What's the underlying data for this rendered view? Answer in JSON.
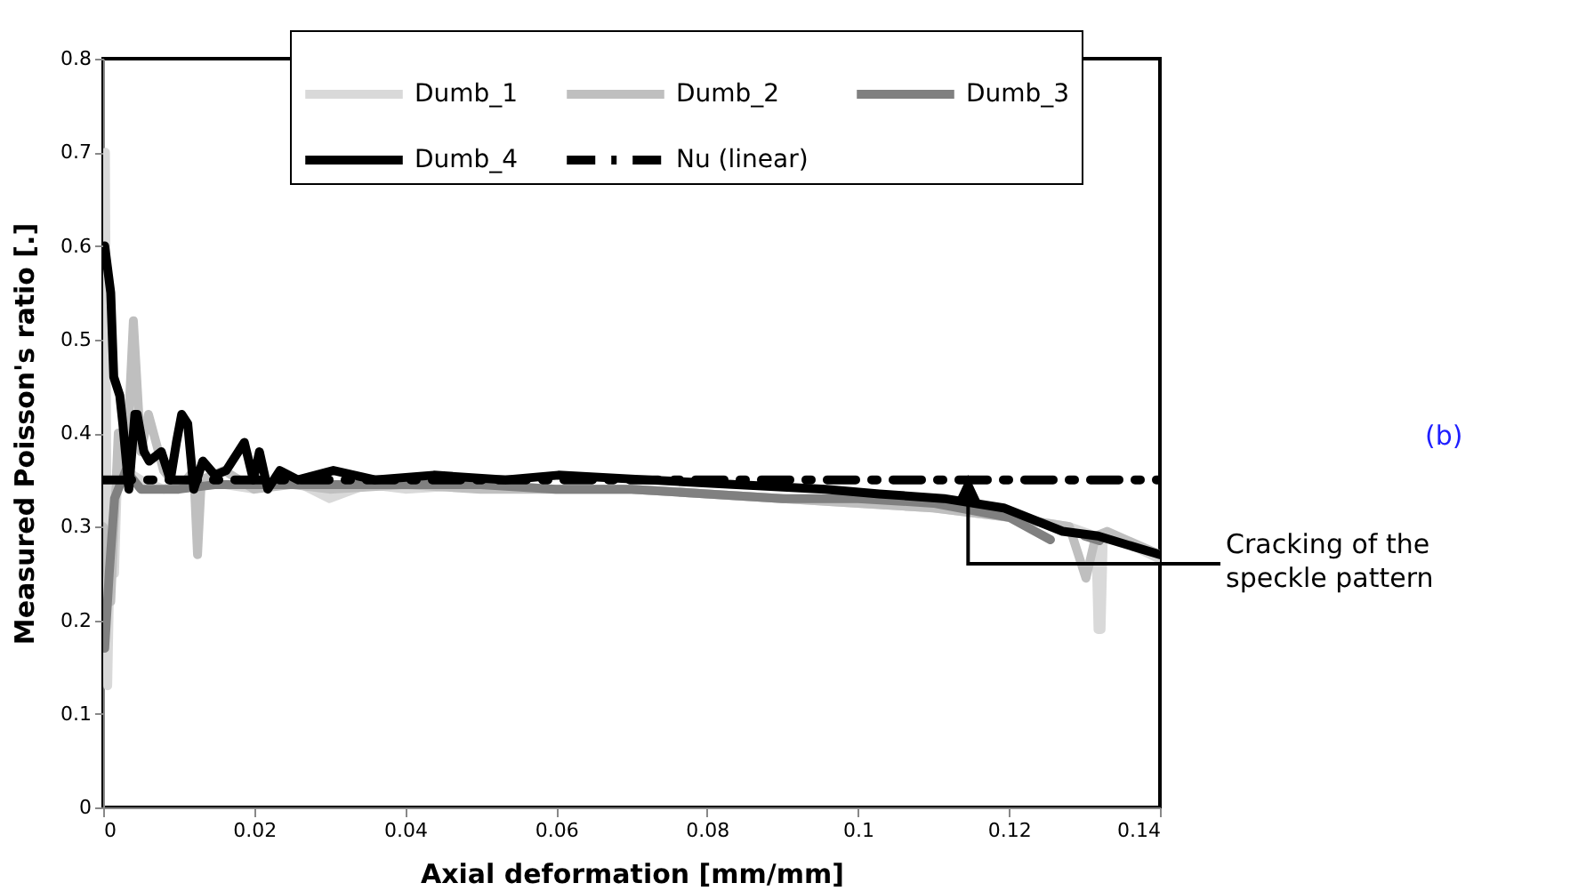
{
  "chart_data": {
    "type": "line",
    "xlabel": "Axial deformation [mm/mm]",
    "ylabel": "Measured Poisson's ratio [.]",
    "xlim": [
      0,
      0.14
    ],
    "xticks": [
      0,
      0.02,
      0.04,
      0.06,
      0.08,
      0.1,
      0.12,
      0.14
    ],
    "ylim": [
      0,
      0.8
    ],
    "yticks": [
      0,
      0.1,
      0.2,
      0.3,
      0.4,
      0.5,
      0.6,
      0.7,
      0.8
    ],
    "legend": "top",
    "annotations": [
      "(b)",
      {
        "text": "Cracking of the speckle pattern",
        "x": 0.116,
        "y": 0.325
      }
    ],
    "series": [
      {
        "name": "Dumb_1",
        "color": "#d9d9d9",
        "line_style": "solid",
        "x": [
          0,
          0.0003,
          0.0006,
          0.001,
          0.0015,
          0.002,
          0.003,
          0.005,
          0.008,
          0.012,
          0.02,
          0.025,
          0.03,
          0.035,
          0.04,
          0.05,
          0.06,
          0.07,
          0.08,
          0.09,
          0.1,
          0.11,
          0.12,
          0.128,
          0.1315,
          0.1318,
          0.1322,
          0.1325,
          0.135,
          0.14
        ],
        "values": [
          0.35,
          0.7,
          0.13,
          0.3,
          0.25,
          0.38,
          0.36,
          0.35,
          0.34,
          0.35,
          0.34,
          0.35,
          0.33,
          0.345,
          0.34,
          0.345,
          0.34,
          0.34,
          0.335,
          0.33,
          0.325,
          0.32,
          0.31,
          0.3,
          0.29,
          0.19,
          0.19,
          0.29,
          0.285,
          0.265
        ]
      },
      {
        "name": "Dumb_2",
        "color": "#bfbfbf",
        "line_style": "solid",
        "x": [
          0,
          0.001,
          0.002,
          0.003,
          0.004,
          0.005,
          0.006,
          0.008,
          0.01,
          0.012,
          0.0125,
          0.013,
          0.016,
          0.02,
          0.025,
          0.03,
          0.04,
          0.05,
          0.06,
          0.07,
          0.08,
          0.09,
          0.1,
          0.11,
          0.12,
          0.128,
          0.1302,
          0.1315,
          0.133,
          0.14
        ],
        "values": [
          0.3,
          0.22,
          0.4,
          0.35,
          0.52,
          0.38,
          0.42,
          0.36,
          0.34,
          0.36,
          0.27,
          0.35,
          0.36,
          0.34,
          0.345,
          0.34,
          0.345,
          0.34,
          0.34,
          0.34,
          0.335,
          0.33,
          0.325,
          0.32,
          0.31,
          0.3,
          0.245,
          0.29,
          0.295,
          0.27
        ]
      },
      {
        "name": "Dumb_3",
        "color": "#808080",
        "line_style": "solid",
        "x": [
          0.0002,
          0.0008,
          0.0015,
          0.003,
          0.005,
          0.01,
          0.015,
          0.02,
          0.03,
          0.04,
          0.05,
          0.06,
          0.07,
          0.08,
          0.09,
          0.1,
          0.11,
          0.12,
          0.1255,
          0.128,
          0.13,
          0.132
        ],
        "values": [
          0.17,
          0.25,
          0.33,
          0.36,
          0.34,
          0.34,
          0.345,
          0.345,
          0.345,
          0.345,
          0.345,
          0.34,
          0.34,
          0.335,
          0.33,
          0.33,
          0.325,
          0.31,
          0.286,
          null,
          0.29,
          0.285
        ]
      },
      {
        "name": "Dumb_4",
        "color": "#000000",
        "line_style": "solid",
        "x": [
          0.0002,
          0.001,
          0.0014,
          0.0022,
          0.0026,
          0.0034,
          0.0042,
          0.0045,
          0.0054,
          0.0061,
          0.0077,
          0.0089,
          0.0097,
          0.0104,
          0.0112,
          0.012,
          0.0132,
          0.0148,
          0.0163,
          0.0187,
          0.0199,
          0.0207,
          0.0218,
          0.0234,
          0.0258,
          0.0305,
          0.036,
          0.0438,
          0.0533,
          0.0603,
          0.0721,
          0.0839,
          0.0957,
          0.1028,
          0.1114,
          0.1193,
          0.1271,
          0.1318,
          0.14
        ],
        "values": [
          0.6,
          0.55,
          0.46,
          0.44,
          0.41,
          0.34,
          0.42,
          0.42,
          0.38,
          0.37,
          0.38,
          0.35,
          0.39,
          0.42,
          0.41,
          0.34,
          0.37,
          0.355,
          0.36,
          0.39,
          0.35,
          0.38,
          0.34,
          0.36,
          0.35,
          0.36,
          0.35,
          0.355,
          0.35,
          0.355,
          0.35,
          0.345,
          0.34,
          0.335,
          0.33,
          0.32,
          0.295,
          0.29,
          0.27
        ]
      },
      {
        "name": "Nu (linear)",
        "color": "#000000",
        "line_style": "dashed",
        "x": [
          0,
          0.14
        ],
        "values": [
          0.35,
          0.35
        ]
      }
    ]
  }
}
